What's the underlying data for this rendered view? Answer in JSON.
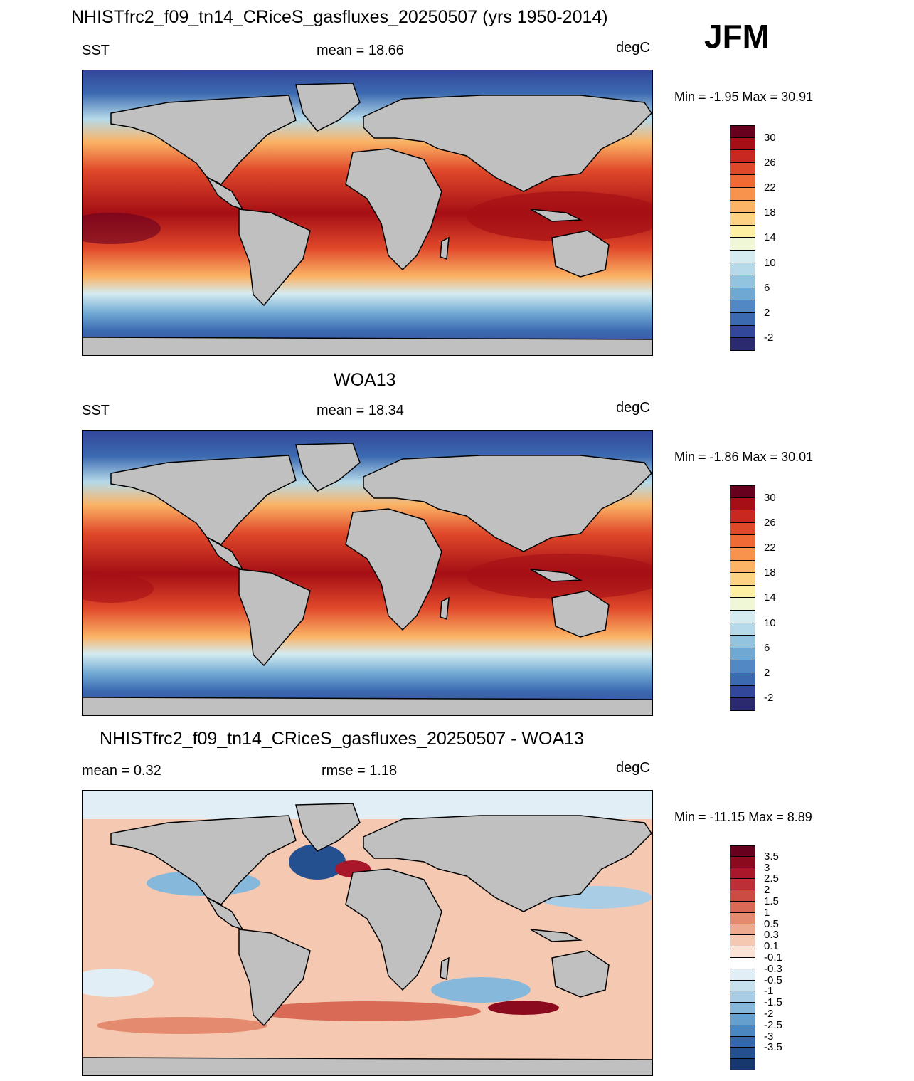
{
  "header": {
    "title": "NHISTfrc2_f09_tn14_CRiceS_gasfluxes_20250507 (yrs 1950-2014)",
    "season": "JFM"
  },
  "panels": [
    {
      "title": "",
      "left_label": "SST",
      "center_label": "mean =  18.66",
      "units": "degC",
      "minmax": "Min =  -1.95 Max =  30.91",
      "colorbar": {
        "colors": [
          "#67001f",
          "#a50f15",
          "#c8281f",
          "#e0482a",
          "#f06a35",
          "#f8934d",
          "#fbb365",
          "#fdd282",
          "#fdf0a3",
          "#f0f7d6",
          "#d4ebf0",
          "#b6dae9",
          "#92c3df",
          "#6fa8d3",
          "#5289c4",
          "#3c6ab1",
          "#33479a",
          "#2c2a6e"
        ],
        "labels": [
          "30",
          "26",
          "22",
          "18",
          "14",
          "10",
          "6",
          "2",
          "-2"
        ]
      }
    },
    {
      "title": "WOA13",
      "left_label": "SST",
      "center_label": "mean =  18.34",
      "units": "degC",
      "minmax": "Min =  -1.86 Max =  30.01",
      "colorbar": {
        "colors": [
          "#67001f",
          "#a50f15",
          "#c8281f",
          "#e0482a",
          "#f06a35",
          "#f8934d",
          "#fbb365",
          "#fdd282",
          "#fdf0a3",
          "#f0f7d6",
          "#d4ebf0",
          "#b6dae9",
          "#92c3df",
          "#6fa8d3",
          "#5289c4",
          "#3c6ab1",
          "#33479a",
          "#2c2a6e"
        ],
        "labels": [
          "30",
          "26",
          "22",
          "18",
          "14",
          "10",
          "6",
          "2",
          "-2"
        ]
      }
    },
    {
      "title": "NHISTfrc2_f09_tn14_CRiceS_gasfluxes_20250507 - WOA13",
      "left_label": "mean =   0.32",
      "center_label": "rmse =   1.18",
      "units": "degC",
      "minmax": "Min = -11.15 Max =   8.89",
      "colorbar": {
        "colors": [
          "#67001f",
          "#8b0a1d",
          "#a8182a",
          "#bd2f36",
          "#cc4c43",
          "#d96a55",
          "#e48a6e",
          "#eeaa8e",
          "#f5c8b2",
          "#fbe3d6",
          "#ffffff",
          "#e2eef6",
          "#c7e0ee",
          "#a8cde5",
          "#86b8db",
          "#659fce",
          "#4a86bf",
          "#3468aa",
          "#245090",
          "#16386f"
        ],
        "labels": [
          "3.5",
          "3",
          "2.5",
          "2",
          "1.5",
          "1",
          "0.5",
          "0.3",
          "0.1",
          "-0.1",
          "-0.3",
          "-0.5",
          "-1",
          "-1.5",
          "-2",
          "-2.5",
          "-3",
          "-3.5"
        ]
      }
    }
  ],
  "map_colors": {
    "land": "#c0c0c0",
    "coast": "#000000"
  }
}
